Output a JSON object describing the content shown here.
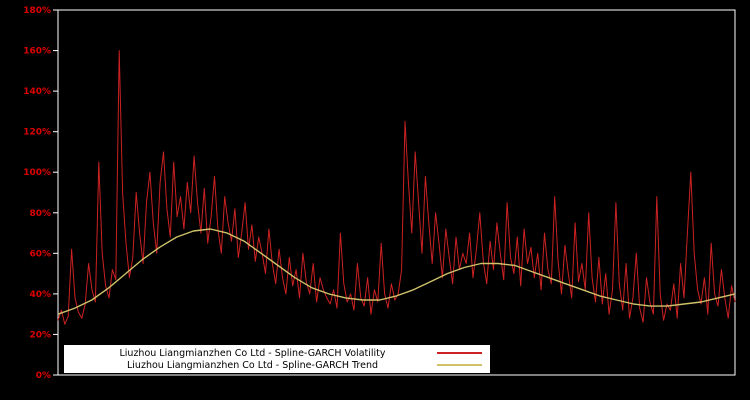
{
  "chart": {
    "background": "#000000",
    "plot_border_color": "#ffffff",
    "axis": {
      "label_color": "#dd0000",
      "tick_labels": [
        "0%",
        "20%",
        "40%",
        "60%",
        "80%",
        "100%",
        "120%",
        "140%",
        "160%",
        "180%"
      ]
    }
  },
  "legend": {
    "background": "#ffffff",
    "items": [
      {
        "label": "Liuzhou Liangmianzhen Co Ltd - Spline-GARCH Volatility",
        "color": "#cc2222"
      },
      {
        "label": "Liuzhou Liangmianzhen Co Ltd - Spline-GARCH Trend",
        "color": "#cfc26a"
      }
    ]
  },
  "chart_data": {
    "type": "line",
    "title": "",
    "xlabel": "",
    "ylabel": "",
    "ylim": [
      0,
      180
    ],
    "y_tick_step": 20,
    "y_tick_format": "percent",
    "grid": false,
    "legend_position": "bottom-center",
    "series": [
      {
        "name": "Liuzhou Liangmianzhen Co Ltd - Spline-GARCH Volatility",
        "color": "#cc2222",
        "values": [
          27,
          32,
          25,
          29,
          62,
          38,
          31,
          28,
          35,
          55,
          42,
          36,
          105,
          60,
          44,
          38,
          52,
          47,
          160,
          90,
          65,
          48,
          58,
          90,
          70,
          55,
          85,
          100,
          75,
          60,
          95,
          110,
          82,
          68,
          105,
          78,
          88,
          72,
          95,
          80,
          108,
          85,
          70,
          92,
          65,
          78,
          98,
          72,
          60,
          88,
          75,
          66,
          82,
          58,
          70,
          85,
          62,
          74,
          56,
          68,
          60,
          50,
          72,
          55,
          45,
          62,
          48,
          40,
          58,
          44,
          52,
          38,
          60,
          46,
          40,
          55,
          36,
          48,
          42,
          38,
          35,
          42,
          33,
          70,
          45,
          36,
          40,
          32,
          55,
          38,
          34,
          48,
          30,
          42,
          36,
          65,
          40,
          33,
          45,
          37,
          40,
          52,
          125,
          95,
          70,
          110,
          85,
          60,
          98,
          75,
          55,
          80,
          65,
          48,
          72,
          58,
          45,
          68,
          52,
          60,
          55,
          70,
          48,
          62,
          80,
          56,
          45,
          66,
          52,
          75,
          60,
          47,
          85,
          58,
          50,
          68,
          44,
          72,
          55,
          63,
          48,
          60,
          42,
          70,
          52,
          45,
          88,
          56,
          40,
          64,
          50,
          38,
          75,
          46,
          55,
          42,
          80,
          48,
          36,
          58,
          35,
          50,
          30,
          42,
          85,
          45,
          32,
          55,
          28,
          38,
          60,
          33,
          26,
          48,
          36,
          30,
          88,
          40,
          27,
          35,
          32,
          45,
          28,
          55,
          38,
          70,
          100,
          60,
          42,
          35,
          48,
          30,
          65,
          40,
          34,
          52,
          38,
          28,
          44,
          36
        ]
      },
      {
        "name": "Liuzhou Liangmianzhen Co Ltd - Spline-GARCH Trend",
        "color": "#cfc26a",
        "values": [
          30,
          33,
          37,
          43,
          50,
          57,
          63,
          68,
          71,
          72,
          70,
          66,
          60,
          54,
          48,
          43,
          40,
          38,
          37,
          37,
          39,
          42,
          46,
          50,
          53,
          55,
          55,
          54,
          51,
          48,
          45,
          42,
          39,
          37,
          35,
          34,
          34,
          35,
          36,
          38,
          40
        ]
      }
    ]
  }
}
